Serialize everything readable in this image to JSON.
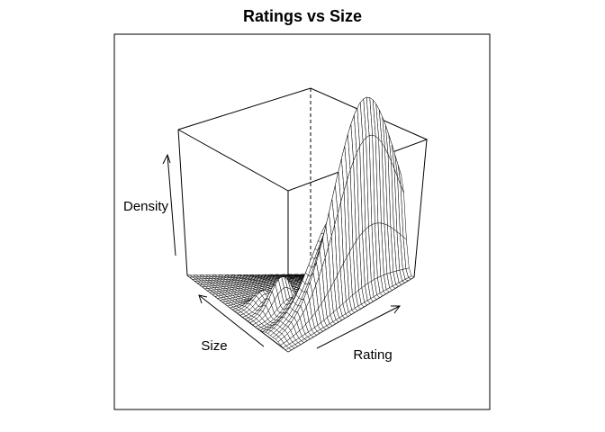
{
  "chart_data": {
    "type": "surface-3d-wireframe",
    "title": "Ratings vs Size",
    "xlabel": "Rating",
    "ylabel": "Size",
    "zlabel": "Density",
    "tick_labels_shown": false,
    "box": true,
    "grid": false,
    "surface_description_features": [
      {
        "feature": "dominant ridge along the high-rating edge",
        "relative_height": 1.0
      },
      {
        "feature": "secondary bumps at mid ratings",
        "relative_height": 0.25
      },
      {
        "feature": "flat plain at low ratings",
        "relative_height": 0.0
      }
    ]
  }
}
